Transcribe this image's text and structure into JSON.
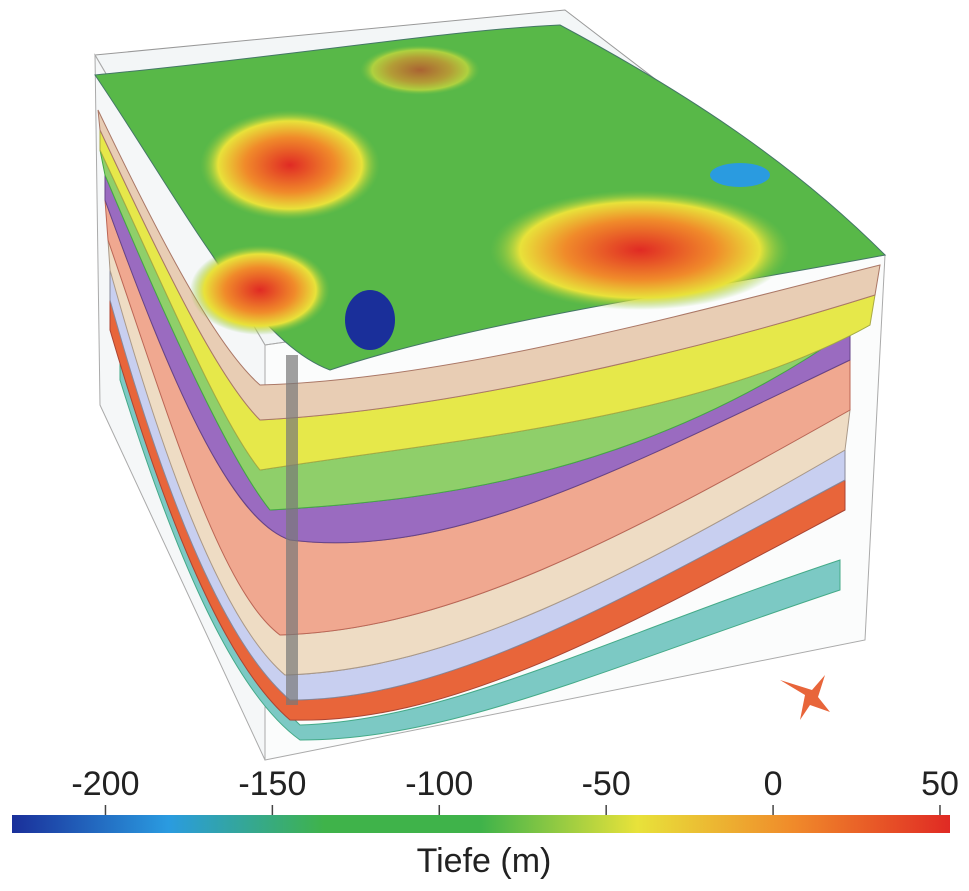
{
  "colorbar": {
    "label": "Tiefe (m)",
    "range": [
      -228,
      53
    ],
    "ticks": [
      -200,
      -150,
      -100,
      -50,
      0,
      50
    ],
    "colors": [
      "#1a2f9a",
      "#2a9be0",
      "#3fb34a",
      "#3fb34a",
      "#e8e23a",
      "#f08a2a",
      "#e02a24"
    ]
  }
}
